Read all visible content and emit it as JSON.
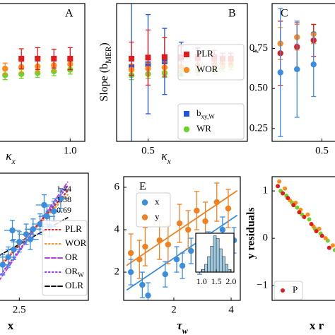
{
  "chart_data": [
    {
      "type": "scatter",
      "panel_label": "A",
      "x_label": [
        {
          "text": "κ"
        },
        {
          "text": "x",
          "sub": true
        }
      ],
      "xlim": [
        0.56,
        1.09
      ],
      "ylim": [
        -0.5,
        2
      ],
      "xticks": [
        {
          "value": 1,
          "label": "1.0"
        }
      ],
      "yticks": [],
      "series": [
        {
          "color": "#e31a1c",
          "marker": "square",
          "x": [
            0.7,
            0.8,
            0.9,
            1.0
          ],
          "values": [
            1.0,
            1.0,
            1.0,
            1.0
          ],
          "errors": [
            0.18,
            0.2,
            0.17,
            0.2
          ]
        },
        {
          "color": "#ff8c1a",
          "marker": "circle",
          "x": [
            0.6,
            0.7,
            0.8,
            0.9,
            1.0
          ],
          "values": [
            0.82,
            0.85,
            0.86,
            0.88,
            0.9
          ],
          "errors": [
            0.1,
            0.1,
            0.1,
            0.1,
            0.1
          ]
        },
        {
          "color": "#6fd12a",
          "marker": "circle",
          "x": [
            0.6,
            0.7,
            0.8,
            0.9,
            1.0
          ],
          "values": [
            0.7,
            0.72,
            0.74,
            0.77,
            0.8
          ],
          "errors": [
            0.08,
            0.08,
            0.08,
            0.08,
            0.08
          ]
        }
      ]
    },
    {
      "type": "scatter",
      "panel_label": "B",
      "x_label": [
        {
          "text": "κ"
        },
        {
          "text": "x",
          "sub": true
        }
      ],
      "y_label": [
        {
          "text": "Slope ("
        },
        {
          "text": "b"
        },
        {
          "text": "MER",
          "sub": true
        },
        {
          "text": ")"
        }
      ],
      "xlim": [
        0.31,
        1.1
      ],
      "ylim": [
        -0.5,
        2
      ],
      "xticks": [
        0.5
      ],
      "yticks": [],
      "series": [
        {
          "name": "PLR",
          "legend": "upper right",
          "color": "#e31a1c",
          "marker": "square",
          "x": [
            0.4,
            0.5,
            0.6,
            0.7,
            0.8,
            0.9,
            0.95,
            1.0
          ],
          "values": [
            1.0,
            1.02,
            1.03,
            1.03,
            1.03,
            1.03,
            1.0,
            1.0
          ],
          "errors": [
            0.3,
            0.5,
            0.35,
            0.2,
            0.15,
            0.12,
            0.1,
            0.1
          ]
        },
        {
          "name": "WOR",
          "legend": "upper right",
          "color": "#ff8c1a",
          "marker": "circle",
          "x": [
            0.4,
            0.5,
            0.6,
            0.7,
            0.8,
            0.9,
            0.95,
            1.0
          ],
          "values": [
            0.8,
            0.82,
            0.84,
            0.86,
            0.88,
            0.9,
            0.92,
            0.94
          ],
          "errors": [
            0.1,
            0.1,
            0.1,
            0.1,
            0.08,
            0.08,
            0.08,
            0.08
          ]
        },
        {
          "name": [
            {
              "text": "b"
            },
            {
              "text": "xy,W",
              "sub": true
            }
          ],
          "legend": "lower right",
          "color": "#2255dd",
          "marker": "square",
          "x": [
            0.4,
            0.5,
            0.6,
            0.7,
            0.8,
            0.9,
            0.95,
            1.0
          ],
          "values": [
            0.85,
            0.9,
            0.95,
            1.0,
            1.0,
            1.0,
            1.0,
            1.0
          ],
          "errors": [
            1.4,
            0.9,
            0.6,
            0.3,
            0.2,
            0.15,
            0.1,
            0.1
          ]
        },
        {
          "name": "WR",
          "legend": "lower right",
          "color": "#6fd12a",
          "marker": "circle",
          "x": [
            0.4,
            0.5,
            0.6,
            0.7,
            0.8,
            0.9,
            0.95,
            1.0
          ],
          "values": [
            0.7,
            0.72,
            0.74,
            0.76,
            0.78,
            0.8,
            0.85,
            0.88
          ],
          "errors": [
            0.08,
            0.08,
            0.08,
            0.08,
            0.08,
            0.08,
            0.08,
            0.08
          ]
        }
      ]
    },
    {
      "type": "scatter",
      "panel_label": "C",
      "y_label": "r",
      "xlim": [
        0.2,
        0.63
      ],
      "ylim": [
        0.17,
        1.03
      ],
      "xticks": [
        0.5
      ],
      "yticks": [
        0.25,
        {
          "value": 0.5,
          "label": "0.50"
        },
        0.75
      ],
      "series": [
        {
          "color": "#3b8de0",
          "marker": "circle",
          "x": [
            0.25,
            0.35,
            0.45
          ],
          "values": [
            0.6,
            0.62,
            0.65
          ],
          "errors": [
            0.4,
            0.3,
            0.2
          ]
        },
        {
          "color": "#e31a1c",
          "marker": "circle",
          "x": [
            0.25,
            0.35,
            0.45
          ],
          "values": [
            0.72,
            0.76,
            0.8
          ],
          "errors": [
            0.2,
            0.15,
            0.1
          ]
        },
        {
          "color": "#ff8c1a",
          "marker": "circle",
          "x": [
            0.25,
            0.35,
            0.45
          ],
          "values": [
            0.78,
            0.82,
            0.84
          ],
          "errors": [
            0.1,
            0.08,
            0.06
          ]
        }
      ]
    },
    {
      "type": "scatter",
      "x_label": "x",
      "xlim": [
        2.35,
        3.0
      ],
      "ylim": [
        0,
        10
      ],
      "xticks": [
        2.5
      ],
      "yticks": [],
      "series": [
        {
          "color": "#3b8de0",
          "marker": "circle",
          "x": [
            2.38,
            2.42,
            2.46,
            2.5,
            2.55,
            2.6,
            2.65,
            2.7,
            2.75,
            2.8,
            2.45,
            2.58,
            2.68,
            2.72
          ],
          "values": [
            2.8,
            3.4,
            4.0,
            4.6,
            5.2,
            5.6,
            6.0,
            6.6,
            7.0,
            8.0,
            5.5,
            4.8,
            7.5,
            5.8
          ],
          "errors": [
            0.8,
            0.8,
            0.8,
            0.8,
            0.8,
            0.8,
            0.8,
            0.8,
            0.8,
            0.8,
            0.8,
            0.8,
            0.8,
            0.8
          ],
          "xerrors": [
            0.06,
            0.06,
            0.06,
            0.06,
            0.06,
            0.06,
            0.06,
            0.06,
            0.06,
            0.06,
            0.06,
            0.06,
            0.06,
            0.06
          ]
        },
        {
          "name": "PLR",
          "legend": "lower right",
          "color": "#e31a1c",
          "marker": "none",
          "line_style": "dotted",
          "x": [
            2.35,
            2.85
          ],
          "values": [
            2.5,
            8.6
          ]
        },
        {
          "name": "WOR",
          "legend": "lower right",
          "color": "#ff8c1a",
          "marker": "none",
          "line_style": "dotted",
          "x": [
            2.35,
            2.85
          ],
          "values": [
            2.7,
            8.3
          ]
        },
        {
          "name": "OR",
          "legend": "lower right",
          "color": "#b040e0",
          "marker": "none",
          "line_style": "dashed",
          "x": [
            2.35,
            2.85
          ],
          "values": [
            1.5,
            9.3
          ]
        },
        {
          "name": [
            {
              "text": "OR"
            },
            {
              "text": "W",
              "sub": true
            }
          ],
          "legend": "lower right",
          "color": "#9b30ff",
          "marker": "none",
          "line_style": "dotted",
          "x": [
            2.35,
            2.85
          ],
          "values": [
            1.8,
            9.0
          ]
        },
        {
          "name": "OLR",
          "legend": "lower right",
          "color": "#000000",
          "marker": "none",
          "line_style": "dashed",
          "x": [
            2.35,
            2.85
          ],
          "values": [
            3.5,
            6.5
          ]
        }
      ],
      "annotations": [
        {
          "text": 1.44,
          "color": "#e31a1c"
        },
        {
          "text": 1.38,
          "color": "#ff8c1a"
        },
        {
          "text": 0.69,
          "color": "#000000"
        }
      ]
    },
    {
      "type": "scatter",
      "panel_label": "E",
      "x_label": [
        {
          "text": "τ"
        },
        {
          "text": "w",
          "sub": true
        }
      ],
      "xlim": [
        0.25,
        4.32
      ],
      "ylim": [
        0.67,
        6.5
      ],
      "xticks": [
        2,
        4
      ],
      "yticks": [
        2,
        4,
        6
      ],
      "series": [
        {
          "name": "x",
          "legend": "upper left",
          "color": "#3b8de0",
          "marker": "circle",
          "x": [
            0.5,
            0.9,
            1.1,
            1.7,
            2.1,
            2.3,
            2.6,
            2.9,
            3.2,
            3.7,
            4.1
          ],
          "values": [
            2.0,
            1.4,
            0.9,
            1.9,
            2.6,
            2.3,
            3.0,
            2.5,
            3.3,
            4.0,
            3.5
          ],
          "errors": [
            0.6,
            0.6,
            0.6,
            0.6,
            0.6,
            0.6,
            0.6,
            0.6,
            0.6,
            0.6,
            0.6
          ]
        },
        {
          "name": "y",
          "legend": "upper left",
          "color": "#f08020",
          "marker": "circle",
          "x": [
            0.5,
            0.8,
            1.0,
            1.5,
            1.8,
            2.2,
            2.5,
            2.8,
            3.1,
            3.5,
            3.9
          ],
          "values": [
            2.9,
            2.6,
            3.2,
            3.5,
            3.3,
            4.3,
            4.0,
            4.9,
            4.4,
            5.3,
            5.0
          ],
          "errors": [
            0.9,
            0.9,
            0.9,
            0.9,
            0.9,
            0.9,
            0.9,
            0.9,
            0.9,
            0.9,
            0.9
          ]
        },
        {
          "color": "#3b8de0",
          "marker": "none",
          "line_style": "solid",
          "x": [
            0.37,
            4.2
          ],
          "values": [
            1.17,
            4.67
          ]
        },
        {
          "color": "#f08020",
          "marker": "none",
          "line_style": "solid",
          "x": [
            0.37,
            4.2
          ],
          "values": [
            2.33,
            5.83
          ]
        }
      ],
      "inset": {
        "type": "histogram",
        "color": "#9ecae1",
        "bins": [
          1.0,
          1.1,
          1.2,
          1.3,
          1.4,
          1.5,
          1.6,
          1.7,
          1.8,
          1.9,
          2.0
        ],
        "counts": [
          1,
          3,
          6,
          10,
          14,
          13,
          9,
          6,
          3,
          1
        ],
        "xlim": [
          0.8,
          2.1
        ],
        "ylim": [
          0,
          15
        ],
        "xticks": [
          {
            "value": 1,
            "label": "1.0"
          },
          1.5,
          {
            "value": 2,
            "label": "2.0"
          }
        ]
      }
    },
    {
      "type": "scatter",
      "y_label": "y residuals",
      "x_label": "x r",
      "xlim": [
        0,
        1
      ],
      "ylim": [
        -1.31,
        1.3
      ],
      "xticks": [],
      "yticks": [
        1,
        0,
        {
          "value": -1,
          "label": "−1"
        }
      ],
      "series": [
        {
          "name": "P",
          "legend": "lower left",
          "color": "#e31a1c",
          "marker": "dot",
          "x": [
            0.08,
            0.15,
            0.22,
            0.3,
            0.38,
            0.45,
            0.55,
            0.62,
            0.7,
            0.8
          ],
          "values": [
            1.1,
            0.95,
            0.85,
            0.7,
            0.55,
            0.45,
            0.3,
            0.15,
            0.05,
            -0.2
          ]
        },
        {
          "color": "#ff8c1a",
          "marker": "dot",
          "x": [
            0.1,
            0.18,
            0.25,
            0.33,
            0.4,
            0.5,
            0.58,
            0.66,
            0.75,
            0.85
          ],
          "values": [
            1.2,
            1.05,
            0.8,
            0.75,
            0.6,
            0.5,
            0.25,
            0.2,
            0.0,
            -0.15
          ]
        },
        {
          "color": "#6fd12a",
          "marker": "dot",
          "x": [
            0.12,
            0.2,
            0.28,
            0.35,
            0.42,
            0.52,
            0.6,
            0.68,
            0.78,
            0.88
          ],
          "values": [
            1.0,
            0.9,
            0.75,
            0.65,
            0.5,
            0.4,
            0.2,
            0.1,
            -0.05,
            -0.25
          ]
        }
      ]
    }
  ]
}
